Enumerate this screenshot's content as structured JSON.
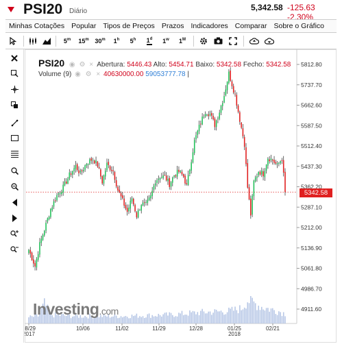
{
  "header": {
    "symbol": "PSI20",
    "period": "Diário",
    "last_price": "5,342.58",
    "change": "-125.63",
    "change_pct": "-2.30%"
  },
  "menu": [
    {
      "name": "menu-minhas-cotacoes",
      "label": "Minhas Cotações"
    },
    {
      "name": "menu-popular",
      "label": "Popular"
    },
    {
      "name": "menu-tipos-de-precos",
      "label": "Tipos de Preços"
    },
    {
      "name": "menu-prazos",
      "label": "Prazos"
    },
    {
      "name": "menu-indicadores",
      "label": "Indicadores"
    },
    {
      "name": "menu-comparar",
      "label": "Comparar"
    },
    {
      "name": "menu-sobre-o-grafico",
      "label": "Sobre o Gráfico"
    }
  ],
  "timeframes": [
    "5m",
    "15m",
    "30m",
    "1h",
    "5h",
    "1d",
    "1w",
    "1M"
  ],
  "active_timeframe": "1d",
  "legend": {
    "symbol": "PSI20",
    "open_label": "Abertura:",
    "open": "5446.43",
    "high_label": "Alto:",
    "high": "5454.71",
    "low_label": "Baixo:",
    "low": "5342.58",
    "close_label": "Fecho:",
    "close": "5342.58",
    "volume_label": "Volume (9)",
    "volume_value": "40630000.00",
    "volume_ma": "59053777.78",
    "volume_sep": "|"
  },
  "logo": {
    "main": "Investing",
    "suffix": ".com"
  },
  "price_tag": "5342.58",
  "colors": {
    "up": "#23c05a",
    "down": "#e02020",
    "volume": "#b7c7e6",
    "accent_negative": "#d0021b"
  },
  "chart_data": {
    "type": "candlestick",
    "y_ticks": [
      "5812.80",
      "5737.70",
      "5662.60",
      "5587.50",
      "5512.40",
      "5437.30",
      "5362.20",
      "5287.10",
      "5212.00",
      "5136.90",
      "5061.80",
      "4986.70",
      "4911.60"
    ],
    "x_ticks": [
      {
        "label": "08/29",
        "sub": "2017"
      },
      {
        "label": "10/06",
        "sub": ""
      },
      {
        "label": "11/02",
        "sub": ""
      },
      {
        "label": "11/29",
        "sub": ""
      },
      {
        "label": "12/28",
        "sub": ""
      },
      {
        "label": "01/25",
        "sub": "2018"
      },
      {
        "label": "02/21",
        "sub": ""
      }
    ],
    "ylim": [
      4880,
      5835
    ],
    "last_close": 5342.58,
    "anchors": [
      [
        0,
        5130
      ],
      [
        4,
        5070
      ],
      [
        7,
        5150
      ],
      [
        10,
        5205
      ],
      [
        14,
        5280
      ],
      [
        18,
        5330
      ],
      [
        22,
        5360
      ],
      [
        26,
        5405
      ],
      [
        30,
        5438
      ],
      [
        33,
        5410
      ],
      [
        37,
        5450
      ],
      [
        41,
        5465
      ],
      [
        44,
        5442
      ],
      [
        47,
        5380
      ],
      [
        50,
        5445
      ],
      [
        54,
        5420
      ],
      [
        57,
        5350
      ],
      [
        60,
        5310
      ],
      [
        63,
        5270
      ],
      [
        66,
        5320
      ],
      [
        69,
        5255
      ],
      [
        72,
        5300
      ],
      [
        75,
        5295
      ],
      [
        78,
        5325
      ],
      [
        81,
        5385
      ],
      [
        84,
        5400
      ],
      [
        87,
        5400
      ],
      [
        90,
        5372
      ],
      [
        93,
        5405
      ],
      [
        96,
        5418
      ],
      [
        99,
        5400
      ],
      [
        101,
        5365
      ],
      [
        103,
        5430
      ],
      [
        106,
        5530
      ],
      [
        110,
        5600
      ],
      [
        113,
        5640
      ],
      [
        116,
        5630
      ],
      [
        119,
        5590
      ],
      [
        122,
        5640
      ],
      [
        125,
        5700
      ],
      [
        128,
        5780
      ],
      [
        130,
        5740
      ],
      [
        132,
        5700
      ],
      [
        135,
        5610
      ],
      [
        138,
        5520
      ],
      [
        140,
        5360
      ],
      [
        142,
        5260
      ],
      [
        144,
        5380
      ],
      [
        147,
        5420
      ],
      [
        150,
        5410
      ],
      [
        153,
        5470
      ],
      [
        156,
        5460
      ],
      [
        159,
        5440
      ],
      [
        162,
        5468
      ],
      [
        164,
        5342.58
      ]
    ],
    "volume_anchors": [
      [
        0,
        0.25
      ],
      [
        6,
        0.3
      ],
      [
        10,
        0.8
      ],
      [
        14,
        0.35
      ],
      [
        30,
        0.3
      ],
      [
        60,
        0.3
      ],
      [
        90,
        0.35
      ],
      [
        110,
        0.45
      ],
      [
        128,
        0.5
      ],
      [
        136,
        0.6
      ],
      [
        140,
        0.95
      ],
      [
        150,
        0.65
      ],
      [
        160,
        0.5
      ],
      [
        164,
        0.4
      ]
    ]
  }
}
